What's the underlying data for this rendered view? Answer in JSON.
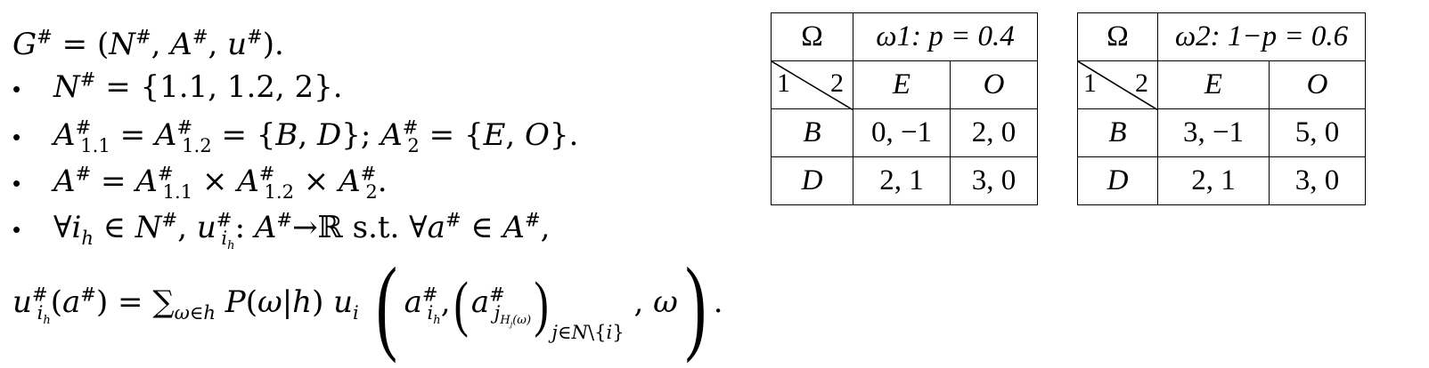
{
  "definition": {
    "G_def": "G# = (N#, A#, u#).",
    "N_def": "N# = {1.1, 1.2, 2}.",
    "A_sets": "A#1.1 = A#1.2 = {B, D}; A#2 = {E, O}.",
    "A_product": "A# = A#1.1 × A#1.2 × A#2.",
    "u_quantifier": "∀ih ∈ N#, u#ih: A#→ℝ s.t. ∀a# ∈ A#,",
    "u_formula": "u#ih(a#) = ∑ω∈h P(ω|h) ui (a#ih, (a#jHj(ω))j∈N\\{i}, ω)."
  },
  "tables": [
    {
      "state_header": "Ω",
      "state_label": "ω1: p = 0.4",
      "row_player": "1",
      "col_player": "2",
      "col_actions": [
        "E",
        "O"
      ],
      "rows": [
        {
          "action": "B",
          "payoffs": [
            "0, −1",
            "2, 0"
          ]
        },
        {
          "action": "D",
          "payoffs": [
            "2, 1",
            "3, 0"
          ]
        }
      ]
    },
    {
      "state_header": "Ω",
      "state_label": "ω2: 1−p = 0.6",
      "row_player": "1",
      "col_player": "2",
      "col_actions": [
        "E",
        "O"
      ],
      "rows": [
        {
          "action": "B",
          "payoffs": [
            "3, −1",
            "5, 0"
          ]
        },
        {
          "action": "D",
          "payoffs": [
            "2, 1",
            "3, 0"
          ]
        }
      ]
    }
  ]
}
